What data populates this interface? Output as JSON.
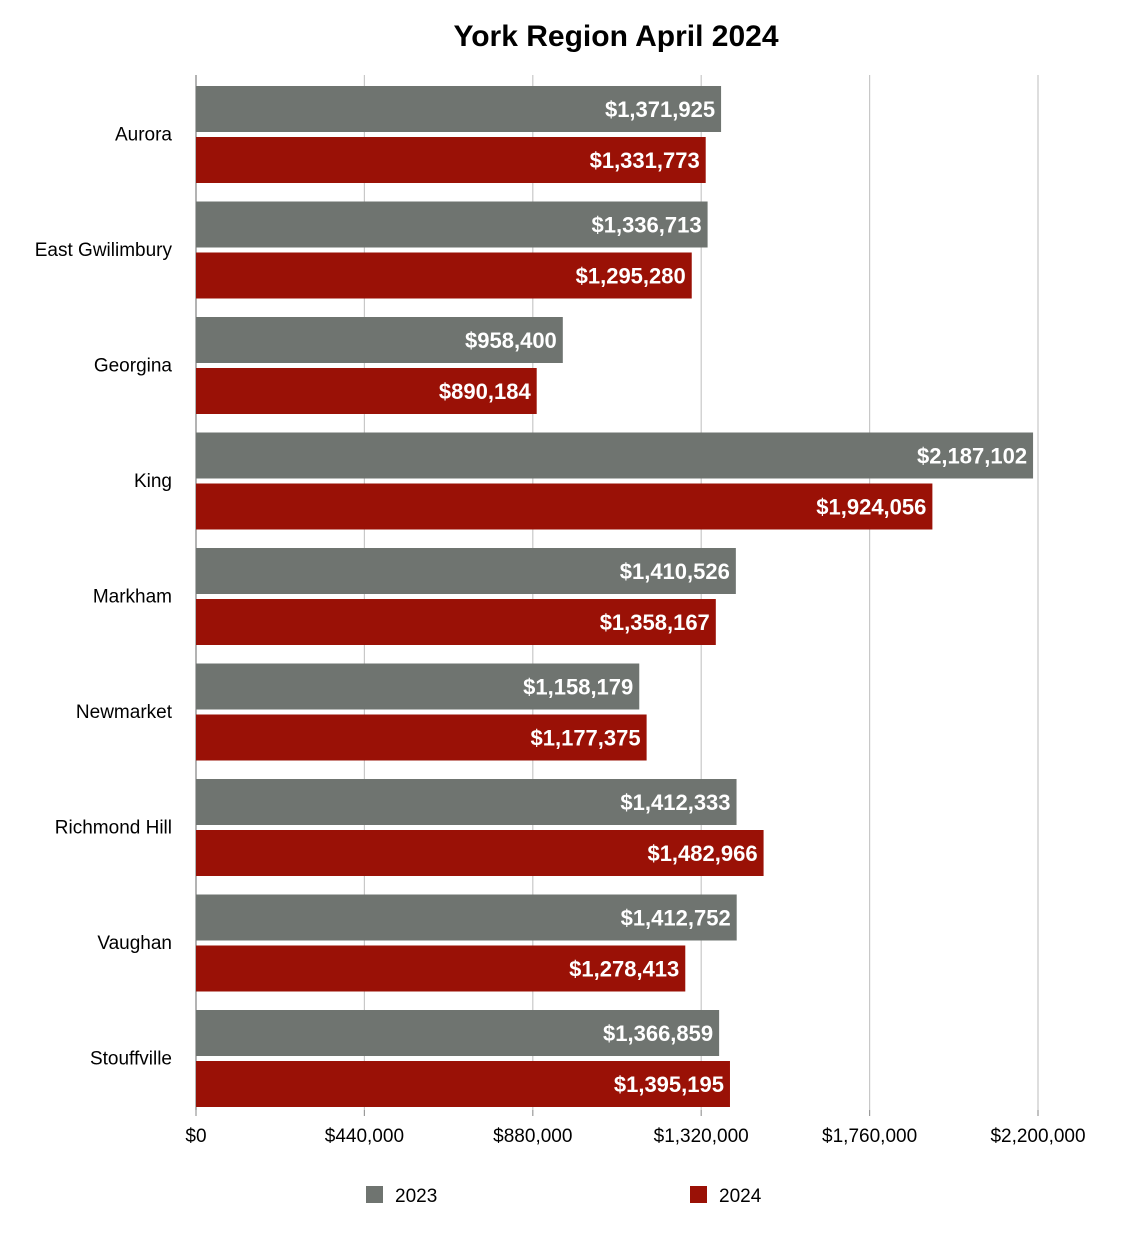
{
  "chart_data": {
    "type": "bar",
    "orientation": "horizontal",
    "title": "York Region April 2024",
    "xlabel": "",
    "ylabel": "",
    "categories": [
      "Aurora",
      "East Gwilimbury",
      "Georgina",
      "King",
      "Markham",
      "Newmarket",
      "Richmond Hill",
      "Vaughan",
      "Stouffville"
    ],
    "series": [
      {
        "name": "2023",
        "color": "#6f7470",
        "values": [
          1371925,
          1336713,
          958400,
          2187102,
          1410526,
          1158179,
          1412333,
          1412752,
          1366859
        ],
        "labels": [
          "$1,371,925",
          "$1,336,713",
          "$958,400",
          "$2,187,102",
          "$1,410,526",
          "$1,158,179",
          "$1,412,333",
          "$1,412,752",
          "$1,366,859"
        ]
      },
      {
        "name": "2024",
        "color": "#9a1106",
        "values": [
          1331773,
          1295280,
          890184,
          1924056,
          1358167,
          1177375,
          1482966,
          1278413,
          1395195
        ],
        "labels": [
          "$1,331,773",
          "$1,295,280",
          "$890,184",
          "$1,924,056",
          "$1,358,167",
          "$1,177,375",
          "$1,482,966",
          "$1,278,413",
          "$1,395,195"
        ]
      }
    ],
    "xlim": [
      0,
      2200000
    ],
    "xticks": [
      0,
      440000,
      880000,
      1320000,
      1760000,
      2200000
    ],
    "xtick_labels": [
      "$0",
      "$440,000",
      "$880,000",
      "$1,320,000",
      "$1,760,000",
      "$2,200,000"
    ],
    "grid": true,
    "legend_position": "bottom",
    "data_label_color": "#ffffff",
    "grid_color": "#c8c8c8",
    "axis_color": "#9a9a9a"
  }
}
